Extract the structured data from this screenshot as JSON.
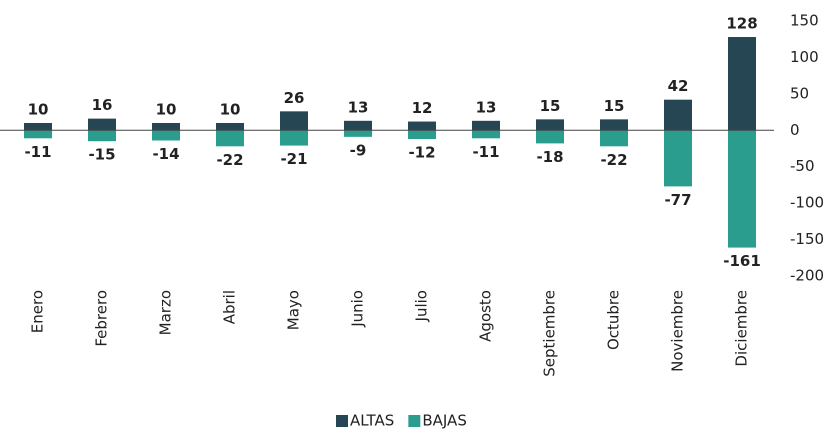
{
  "chart_data": {
    "type": "bar",
    "categories": [
      "Enero",
      "Febrero",
      "Marzo",
      "Abril",
      "Mayo",
      "Junio",
      "Julio",
      "Agosto",
      "Septiembre",
      "Octubre",
      "Noviembre",
      "Diciembre"
    ],
    "series": [
      {
        "name": "ALTAS",
        "color": "#264653",
        "values": [
          10,
          16,
          10,
          10,
          26,
          13,
          12,
          13,
          15,
          15,
          42,
          128
        ]
      },
      {
        "name": "BAJAS",
        "color": "#2a9d8f",
        "values": [
          -11,
          -15,
          -14,
          -22,
          -21,
          -9,
          -12,
          -11,
          -18,
          -22,
          -77,
          -161
        ]
      }
    ],
    "ylim": [
      -200,
      150
    ],
    "yticks": [
      150,
      100,
      50,
      0,
      -50,
      -100,
      -150,
      -200
    ],
    "grid": false,
    "legend": "bottom"
  }
}
